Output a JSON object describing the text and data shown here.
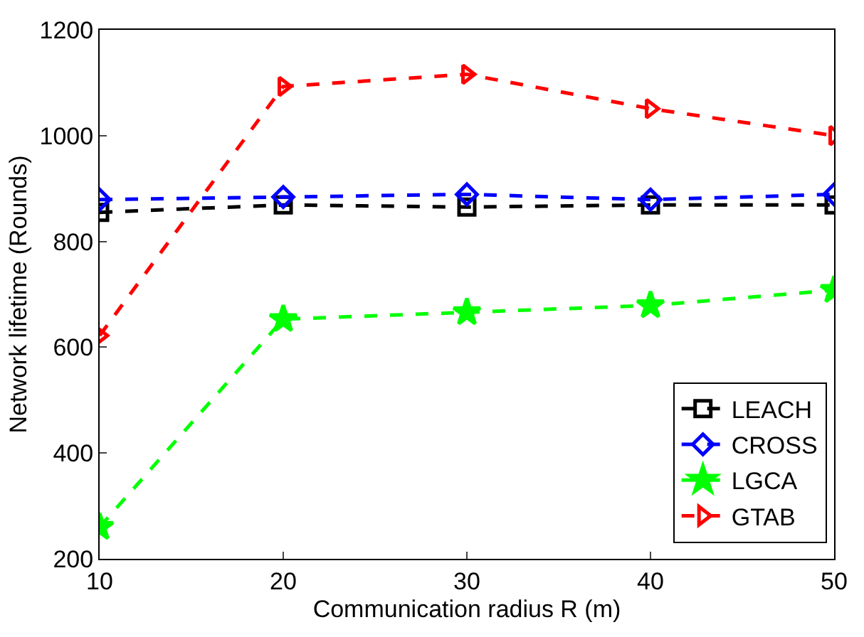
{
  "chart_data": {
    "type": "line",
    "xlabel": "Communication radius R (m)",
    "ylabel": "Network lifetime (Rounds)",
    "x": [
      10,
      20,
      30,
      40,
      50
    ],
    "series": [
      {
        "name": "LEACH",
        "color": "#000000",
        "marker": "square",
        "values": [
          855,
          869,
          865,
          869,
          869
        ]
      },
      {
        "name": "CROSS",
        "color": "#0000ff",
        "marker": "diamond",
        "values": [
          879,
          884,
          889,
          879,
          889
        ]
      },
      {
        "name": "LGCA",
        "color": "#00ff00",
        "marker": "star",
        "values": [
          260,
          653,
          666,
          679,
          708
        ]
      },
      {
        "name": "GTAB",
        "color": "#ff0000",
        "marker": "triangle",
        "values": [
          622,
          1093,
          1116,
          1051,
          1000
        ]
      }
    ],
    "xlim": [
      10,
      50
    ],
    "xticks": [
      10,
      20,
      30,
      40,
      50
    ],
    "ylim": [
      200,
      1200
    ],
    "yticks": [
      200,
      400,
      600,
      800,
      1000,
      1200
    ],
    "line_style": "dashed",
    "legend": "bottom right"
  }
}
